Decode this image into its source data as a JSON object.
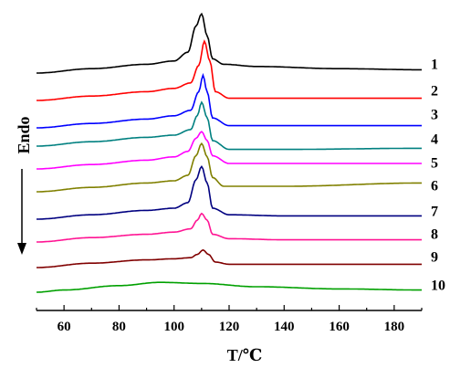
{
  "chart_data": {
    "type": "line",
    "xlabel": "T/℃",
    "ylabel": "Endo",
    "xlim": [
      50,
      190
    ],
    "x_ticks": [
      "60",
      "80",
      "100",
      "120",
      "140",
      "160",
      "180"
    ],
    "grid": false,
    "legend": "none",
    "series": [
      {
        "name": "1",
        "color": "#000000",
        "x": [
          50,
          70,
          90,
          100,
          105,
          108,
          110,
          112,
          114,
          118,
          130,
          160,
          190
        ],
        "y": [
          0,
          0.4,
          0.8,
          1.1,
          1.9,
          4.3,
          5.4,
          3.4,
          1.3,
          0.8,
          0.6,
          0.4,
          0.3
        ]
      },
      {
        "name": "2",
        "color": "#ff0000",
        "x": [
          50,
          70,
          90,
          100,
          106,
          109,
          111,
          113,
          115,
          120,
          140,
          190
        ],
        "y": [
          0,
          0.4,
          0.8,
          1.1,
          1.6,
          3.2,
          5.4,
          3.6,
          0.8,
          0.2,
          0.2,
          0.2
        ]
      },
      {
        "name": "3",
        "color": "#0000ff",
        "x": [
          50,
          70,
          90,
          100,
          106,
          109,
          110.5,
          112,
          114,
          120,
          140,
          190
        ],
        "y": [
          0,
          0.4,
          0.8,
          1.1,
          1.6,
          3.3,
          4.8,
          3.3,
          0.9,
          0.2,
          0.2,
          0.2
        ]
      },
      {
        "name": "4",
        "color": "#008080",
        "x": [
          50,
          70,
          90,
          100,
          106,
          108.5,
          110,
          112,
          114,
          120,
          140,
          190
        ],
        "y": [
          0,
          0.4,
          0.8,
          1.0,
          1.5,
          2.8,
          4.0,
          2.6,
          0.5,
          -0.3,
          -0.3,
          -0.2
        ]
      },
      {
        "name": "5",
        "color": "#ff00ff",
        "x": [
          50,
          70,
          90,
          100,
          105,
          108,
          110,
          112,
          114,
          120,
          140,
          190
        ],
        "y": [
          0,
          0.4,
          0.8,
          1.1,
          1.6,
          2.8,
          3.4,
          2.6,
          1.2,
          0.5,
          0.5,
          0.5
        ]
      },
      {
        "name": "6",
        "color": "#808000",
        "x": [
          50,
          70,
          90,
          100,
          105,
          108,
          110,
          112,
          114,
          118,
          140,
          190
        ],
        "y": [
          0,
          0.4,
          0.8,
          1.0,
          1.5,
          3.3,
          4.4,
          3.2,
          1.3,
          0.5,
          0.5,
          0.8
        ]
      },
      {
        "name": "7",
        "color": "#000080",
        "x": [
          50,
          70,
          90,
          100,
          105,
          108,
          110,
          112,
          114,
          120,
          140,
          190
        ],
        "y": [
          0,
          0.4,
          0.8,
          1.0,
          1.5,
          3.6,
          4.8,
          3.3,
          1.0,
          0.4,
          0.3,
          0.3
        ]
      },
      {
        "name": "8",
        "color": "#ff1493",
        "x": [
          50,
          70,
          90,
          100,
          106,
          108.5,
          110,
          112,
          114,
          120,
          140,
          190
        ],
        "y": [
          0,
          0.4,
          0.7,
          0.9,
          1.2,
          2.0,
          2.6,
          2.0,
          0.7,
          0.3,
          0.2,
          0.2
        ]
      },
      {
        "name": "9",
        "color": "#800000",
        "x": [
          50,
          70,
          90,
          100,
          106,
          108.5,
          110.5,
          112.5,
          115,
          120,
          140,
          190
        ],
        "y": [
          0,
          0.4,
          0.7,
          0.8,
          0.9,
          1.2,
          1.6,
          1.2,
          0.5,
          0.3,
          0.3,
          0.3
        ]
      },
      {
        "name": "10",
        "color": "#00a000",
        "x": [
          50,
          60,
          80,
          95,
          110,
          130,
          160,
          190
        ],
        "y": [
          0,
          0.2,
          0.6,
          0.9,
          0.8,
          0.5,
          0.3,
          0.2
        ]
      }
    ]
  }
}
